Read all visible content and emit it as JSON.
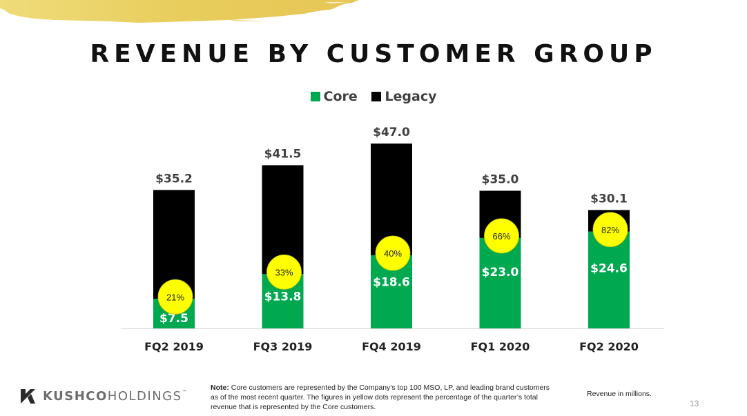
{
  "slide": {
    "title": "REVENUE BY CUSTOMER GROUP",
    "page_number": "13",
    "units_note": "Revenue in millions.",
    "note_label": "Note:",
    "note_text": " Core customers are represented by the Company’s top 100 MSO, LP, and leading brand customers as of the most recent quarter. The figures in yellow dots represent the percentage of the quarter’s total revenue that is represented by the Core customers.",
    "logo": {
      "icon": "kushco-k-logo-icon",
      "word_bold": "KUSHCO",
      "word_light": "HOLDINGS",
      "tm": "™"
    },
    "decoration": "gold-brush-stroke"
  },
  "colors": {
    "core": "#00a84f",
    "legacy": "#000000",
    "dot": "#ffff00",
    "gold": "#e9cf5e",
    "axis": "#d9d9d9",
    "label_dark": "#404040"
  },
  "chart_data": {
    "type": "bar",
    "stacked": true,
    "title": "REVENUE BY CUSTOMER GROUP",
    "xlabel": "",
    "ylabel": "Revenue ($M)",
    "ylim": [
      0,
      50
    ],
    "grid": false,
    "legend": {
      "position": "top-center",
      "entries": [
        "Core",
        "Legacy"
      ]
    },
    "categories": [
      "FQ2 2019",
      "FQ3 2019",
      "FQ4 2019",
      "FQ1 2020",
      "FQ2 2020"
    ],
    "series": [
      {
        "name": "Core",
        "values": [
          7.5,
          13.8,
          18.6,
          23.0,
          24.6
        ],
        "labels": [
          "$7.5",
          "$13.8",
          "$18.6",
          "$23.0",
          "$24.6"
        ]
      },
      {
        "name": "Legacy",
        "values": [
          27.7,
          27.7,
          28.4,
          12.0,
          5.5
        ]
      }
    ],
    "totals": [
      35.2,
      41.5,
      47.0,
      35.0,
      30.1
    ],
    "total_labels": [
      "$35.2",
      "$41.5",
      "$47.0",
      "$35.0",
      "$30.1"
    ],
    "core_share_labels": [
      "21%",
      "33%",
      "40%",
      "66%",
      "82%"
    ],
    "core_share": [
      21,
      33,
      40,
      66,
      82
    ]
  }
}
